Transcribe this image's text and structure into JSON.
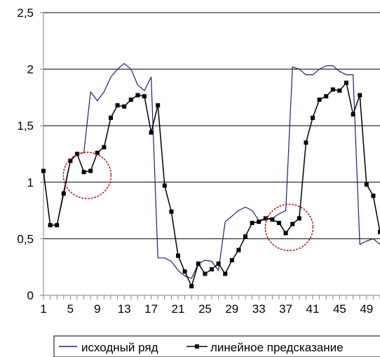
{
  "chart_data": {
    "type": "line",
    "top_label": "",
    "x_categories": [
      1,
      2,
      3,
      4,
      5,
      6,
      7,
      8,
      9,
      10,
      11,
      12,
      13,
      14,
      15,
      16,
      17,
      18,
      19,
      20,
      21,
      22,
      23,
      24,
      25,
      26,
      27,
      28,
      29,
      30,
      31,
      32,
      33,
      34,
      35,
      36,
      37,
      38,
      39,
      40,
      41,
      42,
      43,
      44,
      45,
      46,
      47,
      48,
      49,
      50,
      51
    ],
    "x_tick_labels": [
      "1",
      "5",
      "9",
      "13",
      "17",
      "21",
      "25",
      "29",
      "33",
      "37",
      "41",
      "45",
      "49"
    ],
    "x_tick_positions": [
      1,
      5,
      9,
      13,
      17,
      21,
      25,
      29,
      33,
      37,
      41,
      45,
      49
    ],
    "ylim": [
      0,
      2.5
    ],
    "y_ticks": [
      {
        "value": 0,
        "label": "0"
      },
      {
        "value": 0.5,
        "label": "0,5"
      },
      {
        "value": 1,
        "label": "1"
      },
      {
        "value": 1.5,
        "label": "1,5"
      },
      {
        "value": 2,
        "label": "2"
      },
      {
        "value": 2.5,
        "label": "2,5"
      }
    ],
    "grid": "horizontal",
    "legend_position": "bottom",
    "highlight_circles": [
      {
        "x_center": 7.5,
        "y_center": 1.06
      },
      {
        "x_center": 37.5,
        "y_center": 0.6
      }
    ],
    "series": [
      {
        "name": "исходный ряд",
        "color": "#1f1f7a",
        "marker": "none",
        "values": [
          1.1,
          0.62,
          0.62,
          0.92,
          1.19,
          1.25,
          1.26,
          1.8,
          1.72,
          1.8,
          1.93,
          2.0,
          2.05,
          2.0,
          1.86,
          1.81,
          1.93,
          0.33,
          0.33,
          0.3,
          0.22,
          0.17,
          0.15,
          0.28,
          0.31,
          0.3,
          0.22,
          0.65,
          0.7,
          0.75,
          0.78,
          0.75,
          0.66,
          0.68,
          0.68,
          0.72,
          0.75,
          2.02,
          2.0,
          1.95,
          1.95,
          2.0,
          2.03,
          2.03,
          1.98,
          1.95,
          1.95,
          0.45,
          0.48,
          0.5,
          0.45
        ]
      },
      {
        "name": "линейное предсказание",
        "color": "#000000",
        "marker": "square",
        "values": [
          1.1,
          0.62,
          0.62,
          0.9,
          1.19,
          1.25,
          1.09,
          1.1,
          1.26,
          1.31,
          1.57,
          1.68,
          1.67,
          1.73,
          1.77,
          1.76,
          1.44,
          1.68,
          0.97,
          0.74,
          0.35,
          0.21,
          0.08,
          0.28,
          0.19,
          0.23,
          0.28,
          0.19,
          0.31,
          0.4,
          0.52,
          0.64,
          0.65,
          0.68,
          0.67,
          0.64,
          0.55,
          0.63,
          0.68,
          1.35,
          1.57,
          1.73,
          1.76,
          1.82,
          1.81,
          1.88,
          1.6,
          1.77,
          0.98,
          0.88,
          0.56
        ]
      }
    ]
  }
}
